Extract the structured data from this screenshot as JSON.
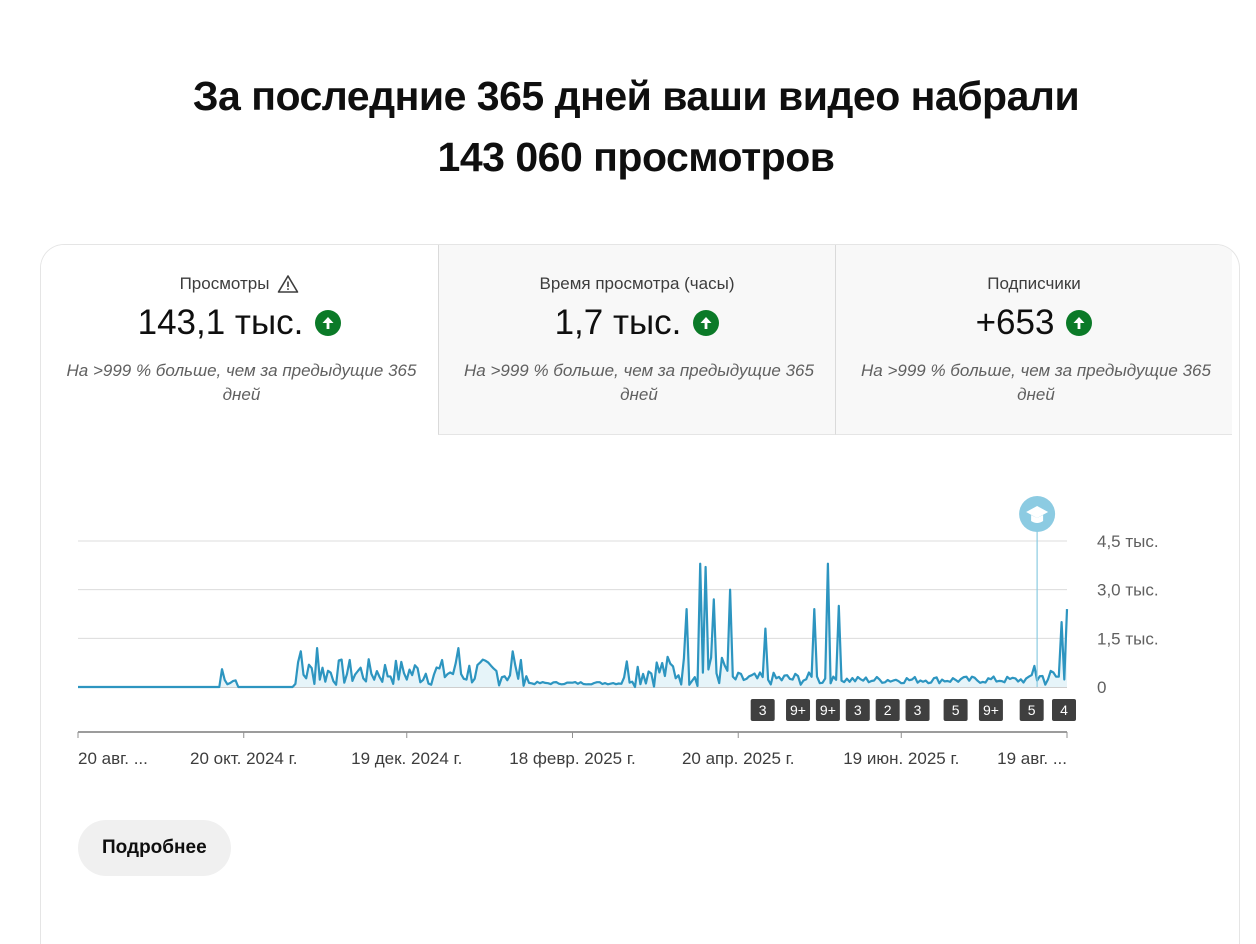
{
  "headline": {
    "line1": "За последние 365 дней ваши видео набрали",
    "line2": "143 060 просмотров"
  },
  "tabs": [
    {
      "label": "Просмотры",
      "value": "143,1 тыс.",
      "compare": "На >999 % больше, чем за предыдущие 365 дней",
      "warning": true,
      "trend_icon": "arrow-up-circle-icon"
    },
    {
      "label": "Время просмотра (часы)",
      "value": "1,7 тыс.",
      "compare": "На >999 % больше, чем за предыдущие 365 дней",
      "warning": false,
      "trend_icon": "arrow-up-circle-icon"
    },
    {
      "label": "Подписчики",
      "value": "+653",
      "compare": "На >999 % больше, чем за предыдущие 365 дней",
      "warning": false,
      "trend_icon": "arrow-up-circle-icon"
    }
  ],
  "colors": {
    "line": "#2d95c0",
    "area": "#e6f4f9",
    "trend_up": "#0b7a28",
    "marker": "#8ccbe2",
    "badge": "#3f3f3f"
  },
  "chart_data": {
    "type": "area",
    "ylim": [
      0,
      4500
    ],
    "y_ticks": [
      {
        "value": 0,
        "label": "0"
      },
      {
        "value": 1500,
        "label": "1,5 тыс."
      },
      {
        "value": 3000,
        "label": "3,0 тыс."
      },
      {
        "value": 4500,
        "label": "4,5 тыс."
      }
    ],
    "x_ticks": [
      "20 авг. ...",
      "20 окт. 2024 г.",
      "19 дек. 2024 г.",
      "18 февр. 2025 г.",
      "20 апр. 2025 г.",
      "19 июн. 2025 г.",
      "19 авг. ..."
    ],
    "x_tick_days": [
      0,
      61,
      121,
      182,
      243,
      303,
      364
    ],
    "days": 365,
    "segments": [
      {
        "from": 0,
        "to": 52,
        "base": 0,
        "amp": 0
      },
      {
        "from": 53,
        "to": 58,
        "base": 200,
        "amp": 150
      },
      {
        "from": 59,
        "to": 79,
        "base": 0,
        "amp": 0
      },
      {
        "from": 80,
        "to": 165,
        "base": 450,
        "amp": 420
      },
      {
        "from": 166,
        "to": 200,
        "base": 120,
        "amp": 40
      },
      {
        "from": 201,
        "to": 240,
        "base": 500,
        "amp": 500
      },
      {
        "from": 241,
        "to": 275,
        "base": 250,
        "amp": 200
      },
      {
        "from": 276,
        "to": 350,
        "base": 220,
        "amp": 110
      },
      {
        "from": 351,
        "to": 364,
        "base": 300,
        "amp": 300
      }
    ],
    "peaks": [
      {
        "day": 53,
        "value": 550
      },
      {
        "day": 82,
        "value": 1100
      },
      {
        "day": 88,
        "value": 1200
      },
      {
        "day": 140,
        "value": 1200
      },
      {
        "day": 160,
        "value": 1100
      },
      {
        "day": 224,
        "value": 2400
      },
      {
        "day": 229,
        "value": 3800
      },
      {
        "day": 231,
        "value": 3700
      },
      {
        "day": 234,
        "value": 2700
      },
      {
        "day": 240,
        "value": 3000
      },
      {
        "day": 253,
        "value": 1800
      },
      {
        "day": 271,
        "value": 2400
      },
      {
        "day": 276,
        "value": 3800
      },
      {
        "day": 280,
        "value": 2500
      },
      {
        "day": 352,
        "value": 650
      },
      {
        "day": 362,
        "value": 2000
      },
      {
        "day": 364,
        "value": 2400
      }
    ],
    "marker_day": 353,
    "marker_icon": "graduation-cap-icon",
    "badges": [
      {
        "label": "3",
        "day": 252
      },
      {
        "label": "9+",
        "day": 265
      },
      {
        "label": "9+",
        "day": 276
      },
      {
        "label": "3",
        "day": 287
      },
      {
        "label": "2",
        "day": 298
      },
      {
        "label": "3",
        "day": 309
      },
      {
        "label": "5",
        "day": 323
      },
      {
        "label": "9+",
        "day": 336
      },
      {
        "label": "5",
        "day": 351
      },
      {
        "label": "4",
        "day": 364
      }
    ]
  },
  "more_button": "Подробнее"
}
